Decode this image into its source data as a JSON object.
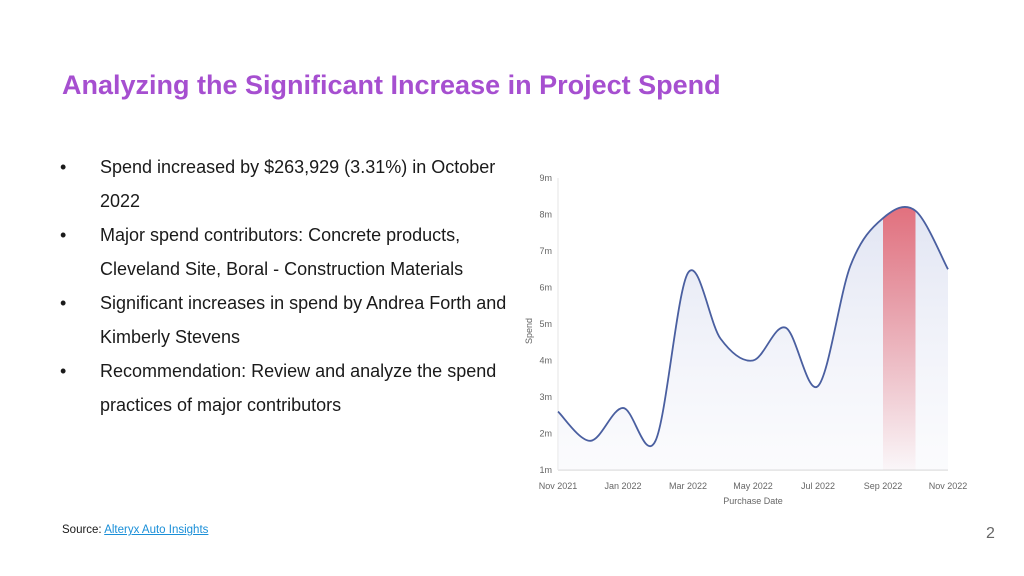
{
  "slide": {
    "title": "Analyzing the Significant Increase in Project Spend",
    "bullet_symbol": "•",
    "bullets": [
      "Spend increased by $263,929 (3.31%) in October 2022",
      "Major spend contributors: Concrete products, Cleveland Site, Boral - Construction Materials",
      "Significant increases in spend by Andrea Forth and Kimberly Stevens",
      "Recommendation: Review and analyze the spend practices of major contributors"
    ],
    "source_label": "Source:",
    "source_link": "Alteryx Auto Insights",
    "page_number": "2"
  },
  "chart_data": {
    "type": "area",
    "xlabel": "Purchase Date",
    "ylabel": "Spend",
    "ylim": [
      1,
      9
    ],
    "y_ticks": [
      "1m",
      "2m",
      "3m",
      "4m",
      "5m",
      "6m",
      "7m",
      "8m",
      "9m"
    ],
    "x_ticks": [
      "Nov 2021",
      "Jan 2022",
      "Mar 2022",
      "May 2022",
      "Jul 2022",
      "Sep 2022",
      "Nov 2022"
    ],
    "x": [
      "2021-11",
      "2021-12",
      "2022-01",
      "2022-02",
      "2022-03",
      "2022-04",
      "2022-05",
      "2022-06",
      "2022-07",
      "2022-08",
      "2022-09",
      "2022-10",
      "2022-11"
    ],
    "series": [
      {
        "values": [
          2.6,
          1.8,
          2.7,
          1.8,
          6.4,
          4.6,
          4.0,
          4.9,
          3.3,
          6.6,
          7.9,
          8.1,
          6.5
        ]
      }
    ],
    "highlight": {
      "from": "2022-09",
      "to": "2022-10"
    },
    "colors": {
      "line": "#4a5fa0",
      "area": "#dfe3f2",
      "highlight": "#e25663",
      "grid": "#e6e6e6"
    }
  }
}
